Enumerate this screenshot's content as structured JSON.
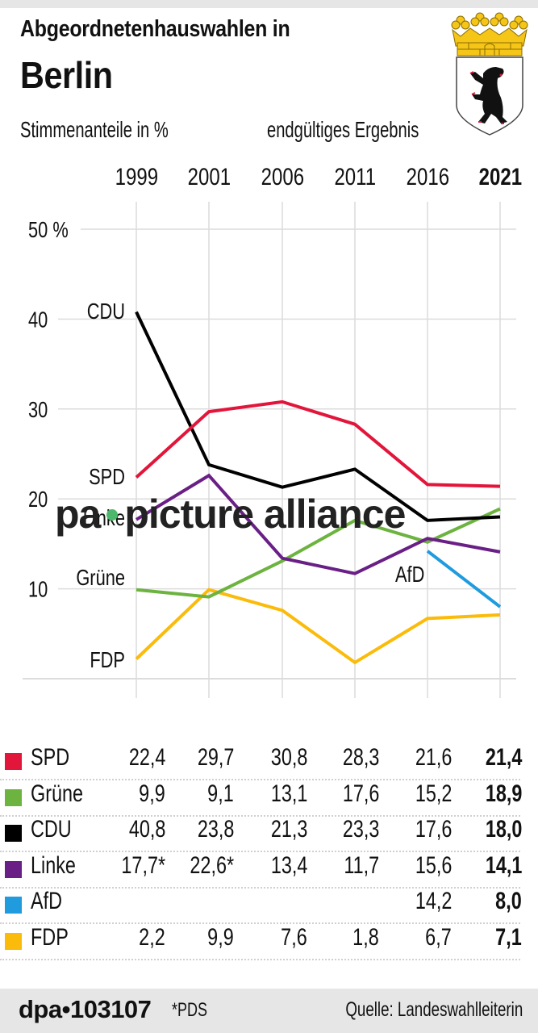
{
  "header": {
    "title_line1": "Abgeordnetenhauswahlen in",
    "title_line2": "Berlin",
    "subtitle_left": "Stimmenanteile in %",
    "subtitle_right": "endgültiges Ergebnis",
    "emblem": "berlin-coat-of-arms-icon"
  },
  "watermark": {
    "left": "pa",
    "right": "picture alliance",
    "dot_color": "#4db86b"
  },
  "chart_data": {
    "type": "line",
    "title": "Abgeordnetenhauswahlen in Berlin",
    "subtitle": "Stimmenanteile in % — endgültiges Ergebnis",
    "xlabel": "",
    "ylabel": "%",
    "x": [
      "1999",
      "2001",
      "2006",
      "2011",
      "2016",
      "2021"
    ],
    "x_bold": "2021",
    "ylim": [
      0,
      50
    ],
    "yticks": [
      {
        "value": 50,
        "label": "50 %"
      },
      {
        "value": 40,
        "label": "40"
      },
      {
        "value": 30,
        "label": "30"
      },
      {
        "value": 20,
        "label": "20"
      },
      {
        "value": 10,
        "label": "10"
      }
    ],
    "grid": true,
    "legend_position": "table below chart",
    "series": [
      {
        "name": "SPD",
        "color": "#e2153a",
        "values": [
          22.4,
          29.7,
          30.8,
          28.3,
          21.6,
          21.4
        ],
        "display": [
          "22,4",
          "29,7",
          "30,8",
          "28,3",
          "21,6",
          "21,4"
        ],
        "label": "SPD"
      },
      {
        "name": "Grüne",
        "color": "#6cb33f",
        "values": [
          9.9,
          9.1,
          13.1,
          17.6,
          15.2,
          18.9
        ],
        "display": [
          "9,9",
          "9,1",
          "13,1",
          "17,6",
          "15,2",
          "18,9"
        ],
        "label": "Grüne"
      },
      {
        "name": "CDU",
        "color": "#000000",
        "values": [
          40.8,
          23.8,
          21.3,
          23.3,
          17.6,
          18.0
        ],
        "display": [
          "40,8",
          "23,8",
          "21,3",
          "23,3",
          "17,6",
          "18,0"
        ],
        "label": "CDU"
      },
      {
        "name": "Linke",
        "color": "#6a1f86",
        "values": [
          17.7,
          22.6,
          13.4,
          11.7,
          15.6,
          14.1
        ],
        "display": [
          "17,7*",
          "22,6*",
          "13,4",
          "11,7",
          "15,6",
          "14,1"
        ],
        "label": "Linke"
      },
      {
        "name": "AfD",
        "color": "#1f9bde",
        "values": [
          null,
          null,
          null,
          null,
          14.2,
          8.0
        ],
        "display": [
          "",
          "",
          "",
          "",
          "14,2",
          "8,0"
        ],
        "label": "AfD"
      },
      {
        "name": "FDP",
        "color": "#fbbb0a",
        "values": [
          2.2,
          9.9,
          7.6,
          1.8,
          6.7,
          7.1
        ],
        "display": [
          "2,2",
          "9,9",
          "7,6",
          "1,8",
          "6,7",
          "7,1"
        ],
        "label": "FDP"
      }
    ],
    "annotations": [
      "*PDS"
    ]
  },
  "footer": {
    "agency": "dpa•103107",
    "note": "*PDS",
    "source": "Quelle: Landeswahlleiterin"
  }
}
